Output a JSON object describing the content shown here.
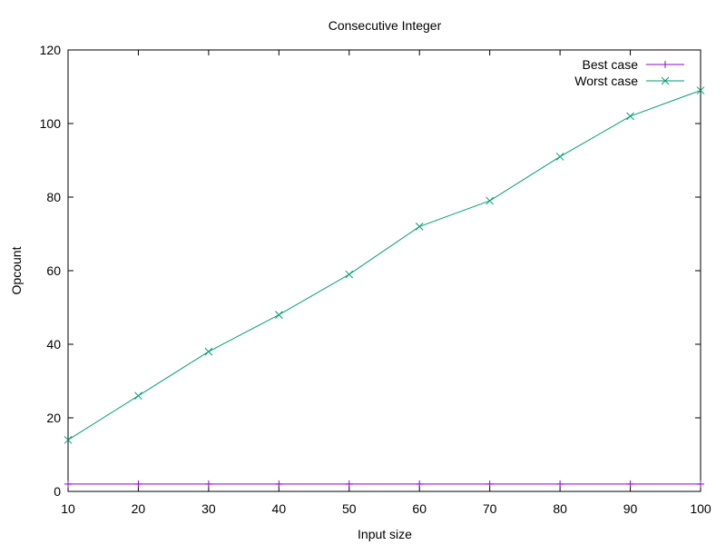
{
  "chart_data": {
    "type": "line",
    "title": "Consecutive Integer",
    "xlabel": "Input size",
    "ylabel": "Opcount",
    "xlim": [
      10,
      100
    ],
    "ylim": [
      0,
      120
    ],
    "x_ticks": [
      10,
      20,
      30,
      40,
      50,
      60,
      70,
      80,
      90,
      100
    ],
    "y_ticks": [
      0,
      20,
      40,
      60,
      80,
      100,
      120
    ],
    "grid": false,
    "legend_position": "top-right",
    "x": [
      10,
      20,
      30,
      40,
      50,
      60,
      70,
      80,
      90,
      100
    ],
    "series": [
      {
        "name": "Best case",
        "color": "#9400d3",
        "marker": "plus",
        "values": [
          2,
          2,
          2,
          2,
          2,
          2,
          2,
          2,
          2,
          2
        ]
      },
      {
        "name": "Worst case",
        "color": "#009e73",
        "marker": "cross",
        "values": [
          14,
          26,
          38,
          48,
          59,
          72,
          79,
          91,
          102,
          109
        ]
      }
    ]
  }
}
